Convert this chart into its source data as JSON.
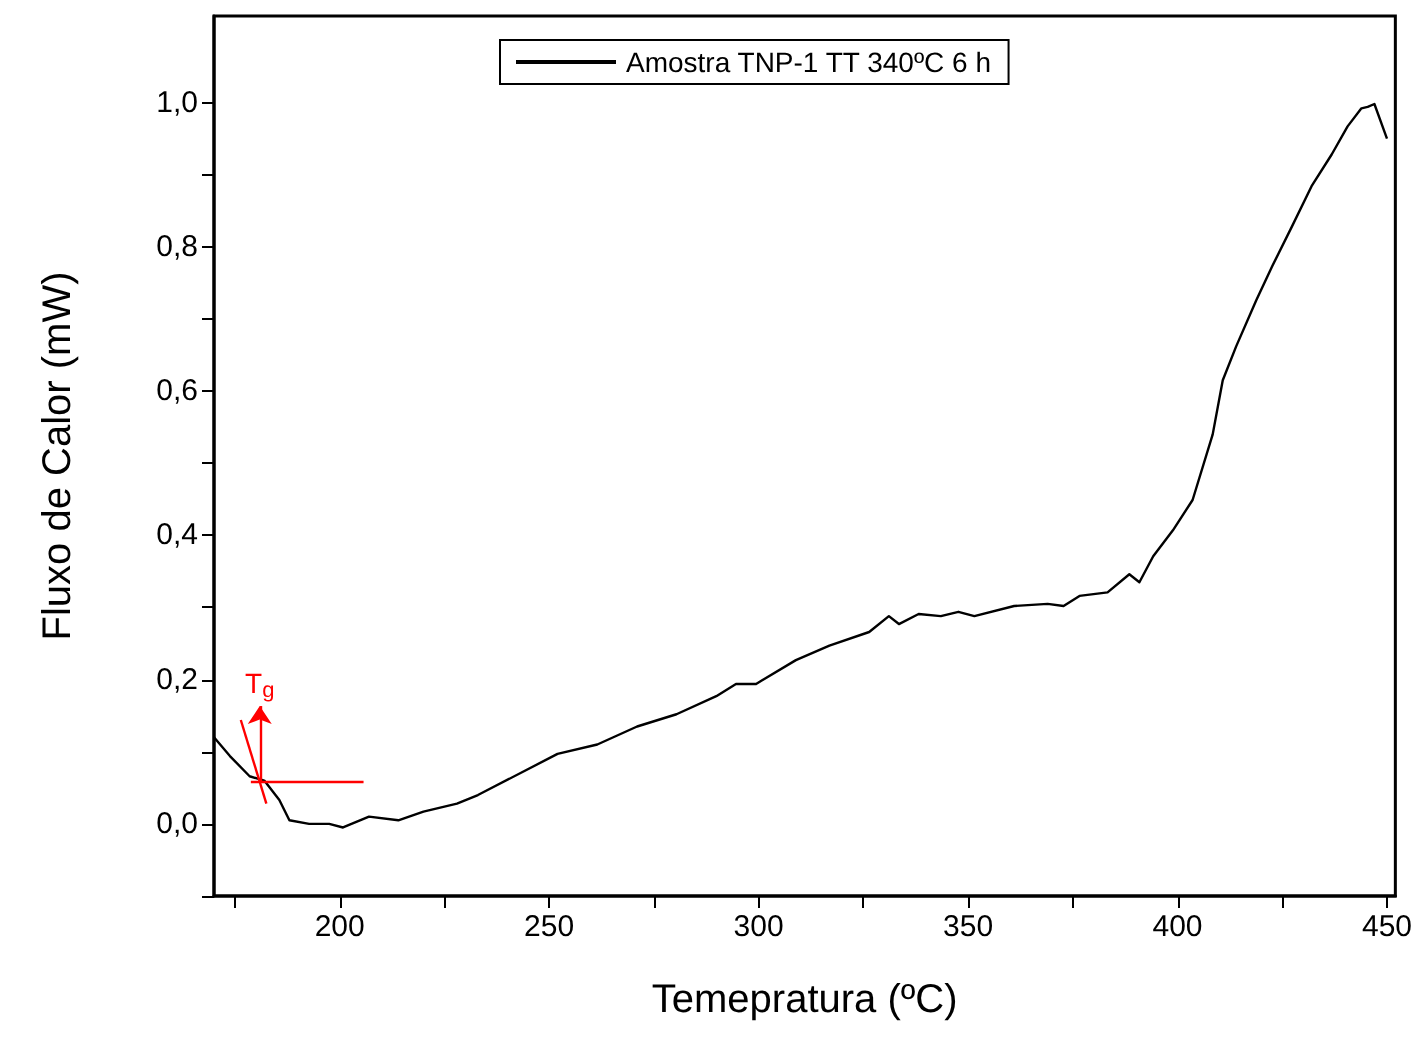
{
  "chart_data": {
    "type": "line",
    "xlabel": "Temepratura (ºC)",
    "ylabel": "Fluxo de Calor (mW)",
    "xlim": [
      170,
      452
    ],
    "ylim": [
      -0.1,
      1.12
    ],
    "xticks": [
      {
        "value": 175,
        "label": null
      },
      200,
      {
        "value": 225,
        "label": null
      },
      250,
      {
        "value": 275,
        "label": null
      },
      300,
      {
        "value": 325,
        "label": null
      },
      350,
      {
        "value": 375,
        "label": null
      },
      400,
      {
        "value": 425,
        "label": null
      },
      450
    ],
    "yticks": [
      {
        "value": -0.1,
        "label": null
      },
      {
        "value": 0,
        "label": "0,0"
      },
      {
        "value": 0.1,
        "label": null
      },
      {
        "value": 0.2,
        "label": "0,2"
      },
      {
        "value": 0.3,
        "label": null
      },
      {
        "value": 0.4,
        "label": "0,4"
      },
      {
        "value": 0.5,
        "label": null
      },
      {
        "value": 0.6,
        "label": "0,6"
      },
      {
        "value": 0.7,
        "label": null
      },
      {
        "value": 0.8,
        "label": "0,8"
      },
      {
        "value": 0.9,
        "label": null
      },
      {
        "value": 1.0,
        "label": "1,0"
      }
    ],
    "grid": false,
    "legend": "top",
    "marker": "none",
    "line_style": "solid",
    "annotations": [
      "T$_{g}$"
    ],
    "series": [
      {
        "name": "Amostra TNP-1 TT 340ºC 6 h",
        "color": "#000000",
        "x": [
          170,
          173.8,
          178.5,
          182,
          185.6,
          188,
          192.7,
          197.5,
          200.8,
          207,
          214,
          220,
          228,
          233,
          252,
          261.5,
          271,
          280.4,
          289.9,
          294.6,
          299.4,
          308.9,
          316.9,
          326.4,
          331.1,
          333.5,
          338.2,
          343.5,
          347.7,
          351.5,
          361,
          369,
          372.8,
          376.6,
          383.3,
          388.5,
          390.9,
          394.2,
          398.9,
          403.6,
          408.4,
          410.8,
          414,
          418.8,
          422.6,
          427.3,
          432,
          436.8,
          440.6,
          443.9,
          445.4,
          447,
          450
        ],
        "values": [
          0.12,
          0.094,
          0.066,
          0.06,
          0.033,
          0.005,
          0,
          0,
          -0.005,
          0.01,
          0.005,
          0.017,
          0.028,
          0.04,
          0.097,
          0.11,
          0.135,
          0.152,
          0.177,
          0.194,
          0.194,
          0.227,
          0.247,
          0.266,
          0.288,
          0.277,
          0.291,
          0.288,
          0.294,
          0.288,
          0.302,
          0.305,
          0.302,
          0.316,
          0.321,
          0.346,
          0.335,
          0.371,
          0.407,
          0.449,
          0.54,
          0.615,
          0.662,
          0.726,
          0.773,
          0.828,
          0.884,
          0.928,
          0.967,
          0.992,
          0.994,
          0.998,
          0.95
        ]
      },
      {
        "color": "#ff0000",
        "x": [
          178.8,
          205.7
        ],
        "values": [
          0.058,
          0.058
        ]
      },
      {
        "color": "#ff0000",
        "x": [
          176.4,
          182.5
        ],
        "values": [
          0.144,
          0.028
        ]
      }
    ]
  }
}
